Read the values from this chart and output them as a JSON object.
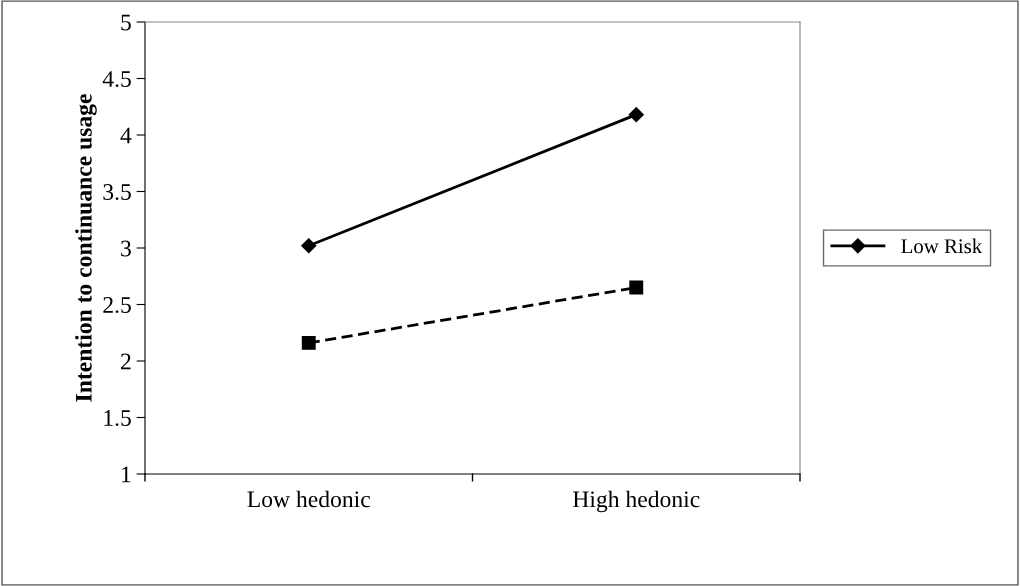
{
  "chart_data": {
    "type": "line",
    "ylabel": "Intention to continuance usage",
    "categories": [
      "Low hedonic",
      "High hedonic"
    ],
    "series": [
      {
        "name": "Low Risk",
        "color": "#000000",
        "values": [
          3.02,
          4.18
        ],
        "marker": "diamond",
        "line_style": "solid"
      },
      {
        "color": "#000000",
        "values": [
          2.16,
          2.65
        ],
        "marker": "square",
        "line_style": "dashed"
      }
    ],
    "ylim": [
      1,
      5
    ],
    "yticks": [
      1,
      1.5,
      2,
      2.5,
      3,
      3.5,
      4,
      4.5,
      5
    ],
    "grid": false,
    "legend": "right"
  }
}
